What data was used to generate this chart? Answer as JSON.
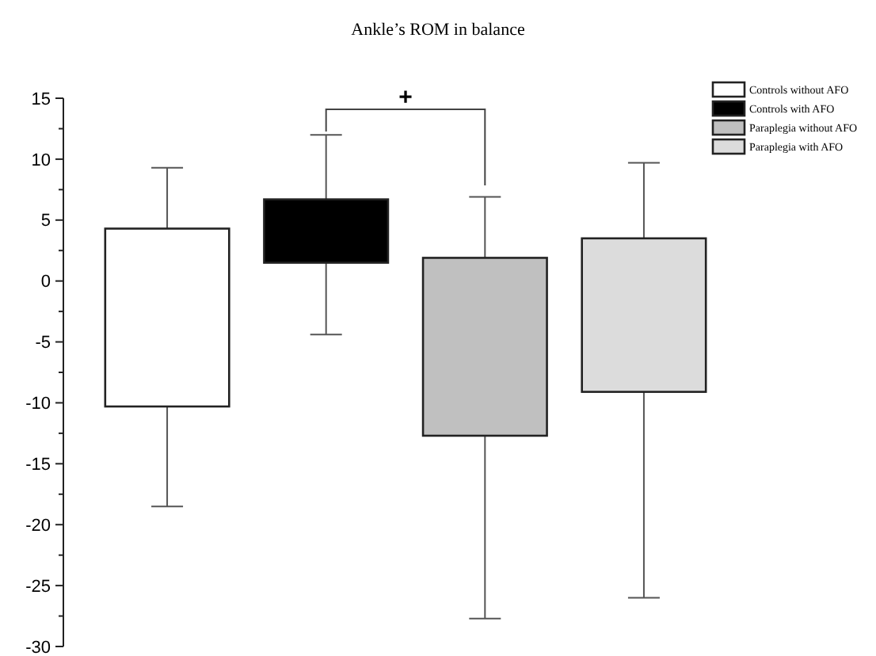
{
  "chart_data": {
    "type": "bar",
    "title": "Ankle’s ROM in balance",
    "categories": [
      null
    ],
    "series": [
      {
        "name": "Controls without AFO",
        "color": "#ffffff",
        "values": [
          14.6
        ],
        "base": [
          -10.3
        ],
        "errors": [
          [
            -18.5,
            9.3
          ]
        ]
      },
      {
        "name": "Controls with AFO",
        "color": "#000000",
        "values": [
          5.2
        ],
        "base": [
          1.5
        ],
        "errors": [
          [
            -4.4,
            12
          ]
        ]
      },
      {
        "name": "Paraplegia without AFO",
        "color": "#c0c0c0",
        "values": [
          14.6
        ],
        "base": [
          -12.7
        ],
        "errors": [
          [
            -27.7,
            6.9
          ]
        ]
      },
      {
        "name": "Paraplegia with AFO",
        "color": "#dcdcdc",
        "values": [
          12.6
        ],
        "base": [
          -9.1
        ],
        "errors": [
          [
            -26,
            9.7
          ]
        ]
      }
    ],
    "ylim": [
      -30,
      15
    ],
    "yticks": [
      -30,
      -25,
      -20,
      -15,
      -10,
      -5,
      0,
      5,
      10,
      15
    ],
    "grid": false,
    "legend": "top right",
    "annotations": [
      "+"
    ]
  }
}
